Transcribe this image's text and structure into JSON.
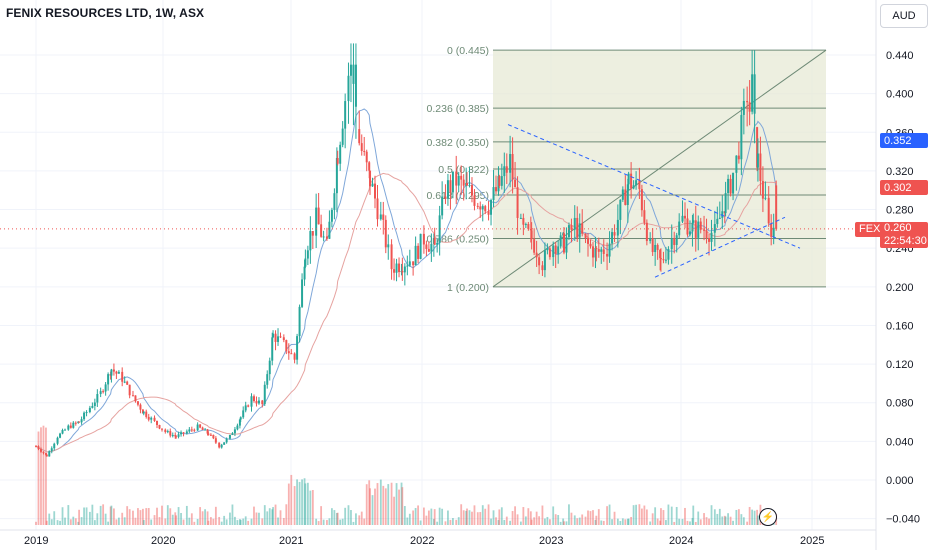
{
  "header": {
    "title": "FENIX RESOURCES LTD, 1W, ASX",
    "currency": "AUD"
  },
  "price_axis": {
    "ticks": [
      "0.440",
      "0.400",
      "0.360",
      "0.320",
      "0.280",
      "0.240",
      "0.200",
      "0.160",
      "0.120",
      "0.080",
      "0.040",
      "0.000",
      "−0.040"
    ]
  },
  "date_axis": {
    "ticks": [
      "2019",
      "2020",
      "2021",
      "2022",
      "2023",
      "2024",
      "2025"
    ]
  },
  "price_tags": {
    "ma_long": {
      "value": "0.352",
      "color": "#2962ff"
    },
    "ma_short": {
      "value": "0.302",
      "color": "#ef5350"
    },
    "symbol": "FEX",
    "last_price": "0.260",
    "countdown": "22:54:30"
  },
  "fib_levels": [
    {
      "label": "0 (0.445)",
      "price": 0.445
    },
    {
      "label": "0.236 (0.385)",
      "price": 0.385
    },
    {
      "label": "0.382 (0.350)",
      "price": 0.35
    },
    {
      "label": "0.5 (0.322)",
      "price": 0.322
    },
    {
      "label": "0.618 (0.295)",
      "price": 0.295
    },
    {
      "label": "0.786 (0.250)",
      "price": 0.25
    },
    {
      "label": "1 (0.200)",
      "price": 0.2
    }
  ],
  "colors": {
    "up": "#26a69a",
    "down": "#ef5350",
    "ma_fast": "#7fa7d9",
    "ma_slow": "#e6a3a0",
    "fib_fill": "#e7ead6",
    "fib_line": "#6e8a76",
    "trend_line": "#2962ff",
    "crosshair": "#9598a1"
  },
  "chart_data": {
    "type": "candlestick",
    "interval": "1W",
    "symbol": "FEX",
    "exchange": "ASX",
    "currency": "AUD",
    "ylim": [
      -0.04,
      0.46
    ],
    "x_range": [
      "2018-12-31",
      "2025-03-01"
    ],
    "last_close": 0.26,
    "fib_retracement": {
      "high": 0.445,
      "low": 0.2
    },
    "monthly_approx_close": [
      [
        "2019-01",
        0.035
      ],
      [
        "2019-02",
        0.025
      ],
      [
        "2019-03",
        0.045
      ],
      [
        "2019-04",
        0.055
      ],
      [
        "2019-05",
        0.06
      ],
      [
        "2019-06",
        0.075
      ],
      [
        "2019-07",
        0.09
      ],
      [
        "2019-08",
        0.115
      ],
      [
        "2019-09",
        0.105
      ],
      [
        "2019-10",
        0.085
      ],
      [
        "2019-11",
        0.07
      ],
      [
        "2019-12",
        0.06
      ],
      [
        "2020-01",
        0.05
      ],
      [
        "2020-02",
        0.045
      ],
      [
        "2020-03",
        0.05
      ],
      [
        "2020-04",
        0.055
      ],
      [
        "2020-05",
        0.048
      ],
      [
        "2020-06",
        0.035
      ],
      [
        "2020-07",
        0.045
      ],
      [
        "2020-08",
        0.065
      ],
      [
        "2020-09",
        0.085
      ],
      [
        "2020-10",
        0.078
      ],
      [
        "2020-11",
        0.15
      ],
      [
        "2020-12",
        0.14
      ],
      [
        "2021-01",
        0.125
      ],
      [
        "2021-02",
        0.24
      ],
      [
        "2021-03",
        0.27
      ],
      [
        "2021-04",
        0.24
      ],
      [
        "2021-05",
        0.34
      ],
      [
        "2021-06",
        0.42
      ],
      [
        "2021-07",
        0.35
      ],
      [
        "2021-08",
        0.31
      ],
      [
        "2021-09",
        0.27
      ],
      [
        "2021-10",
        0.22
      ],
      [
        "2021-11",
        0.225
      ],
      [
        "2021-12",
        0.23
      ],
      [
        "2022-01",
        0.25
      ],
      [
        "2022-02",
        0.24
      ],
      [
        "2022-03",
        0.3
      ],
      [
        "2022-04",
        0.31
      ],
      [
        "2022-05",
        0.3
      ],
      [
        "2022-06",
        0.29
      ],
      [
        "2022-07",
        0.285
      ],
      [
        "2022-08",
        0.305
      ],
      [
        "2022-09",
        0.33
      ],
      [
        "2022-10",
        0.26
      ],
      [
        "2022-11",
        0.25
      ],
      [
        "2022-12",
        0.225
      ],
      [
        "2023-01",
        0.245
      ],
      [
        "2023-02",
        0.245
      ],
      [
        "2023-03",
        0.265
      ],
      [
        "2023-04",
        0.245
      ],
      [
        "2023-05",
        0.235
      ],
      [
        "2023-06",
        0.24
      ],
      [
        "2023-07",
        0.27
      ],
      [
        "2023-08",
        0.31
      ],
      [
        "2023-09",
        0.3
      ],
      [
        "2023-10",
        0.24
      ],
      [
        "2023-11",
        0.225
      ],
      [
        "2023-12",
        0.25
      ],
      [
        "2024-01",
        0.27
      ],
      [
        "2024-02",
        0.26
      ],
      [
        "2024-03",
        0.26
      ],
      [
        "2024-04",
        0.255
      ],
      [
        "2024-05",
        0.29
      ],
      [
        "2024-06",
        0.33
      ],
      [
        "2024-07",
        0.4
      ],
      [
        "2024-08",
        0.33
      ],
      [
        "2024-09",
        0.26
      ]
    ]
  }
}
